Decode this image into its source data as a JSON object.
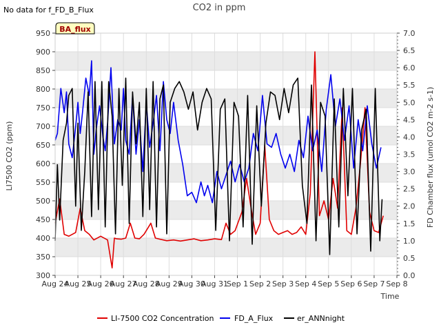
{
  "chart_data": {
    "type": "line",
    "title": "CO2 in ppm",
    "corner_note": "No data for f_FD_B_Flux",
    "badge": "BA_flux",
    "xlabel": "Time",
    "ylabel": "LI7500 CO2 (ppm)",
    "y2label": "FD Chamber flux (umol CO2 m-2 s-1)",
    "xlim": [
      0,
      15
    ],
    "ylim": [
      300,
      950
    ],
    "y2lim": [
      0.0,
      7.0
    ],
    "x_ticks": [
      {
        "pos": 0,
        "label": "Aug 24"
      },
      {
        "pos": 1,
        "label": "Aug 25"
      },
      {
        "pos": 2,
        "label": "Aug 26"
      },
      {
        "pos": 3,
        "label": "Aug 27"
      },
      {
        "pos": 4,
        "label": "Aug 28"
      },
      {
        "pos": 5,
        "label": "Aug 29"
      },
      {
        "pos": 6,
        "label": "Aug 30"
      },
      {
        "pos": 7,
        "label": "Aug 31"
      },
      {
        "pos": 8,
        "label": "Sep 1"
      },
      {
        "pos": 9,
        "label": "Sep 2"
      },
      {
        "pos": 10,
        "label": "Sep 3"
      },
      {
        "pos": 11,
        "label": "Sep 4"
      },
      {
        "pos": 12,
        "label": "Sep 5"
      },
      {
        "pos": 13,
        "label": "Sep 6"
      },
      {
        "pos": 14,
        "label": "Sep 7"
      },
      {
        "pos": 15,
        "label": "Sep 8"
      }
    ],
    "y_ticks": [
      {
        "value": 300,
        "label": "300"
      },
      {
        "value": 350,
        "label": "350"
      },
      {
        "value": 400,
        "label": "400"
      },
      {
        "value": 450,
        "label": "450"
      },
      {
        "value": 500,
        "label": "500"
      },
      {
        "value": 550,
        "label": "550"
      },
      {
        "value": 600,
        "label": "600"
      },
      {
        "value": 650,
        "label": "650"
      },
      {
        "value": 700,
        "label": "700"
      },
      {
        "value": 750,
        "label": "750"
      },
      {
        "value": 800,
        "label": "800"
      },
      {
        "value": 850,
        "label": "850"
      },
      {
        "value": 900,
        "label": "900"
      },
      {
        "value": 950,
        "label": "950"
      }
    ],
    "y2_ticks": [
      {
        "value": 0.0,
        "label": "0.0"
      },
      {
        "value": 0.5,
        "label": "0.5"
      },
      {
        "value": 1.0,
        "label": "1.0"
      },
      {
        "value": 1.5,
        "label": "1.5"
      },
      {
        "value": 2.0,
        "label": "2.0"
      },
      {
        "value": 2.5,
        "label": "2.5"
      },
      {
        "value": 3.0,
        "label": "3.0"
      },
      {
        "value": 3.5,
        "label": "3.5"
      },
      {
        "value": 4.0,
        "label": "4.0"
      },
      {
        "value": 4.5,
        "label": "4.5"
      },
      {
        "value": 5.0,
        "label": "5.0"
      },
      {
        "value": 5.5,
        "label": "5.5"
      },
      {
        "value": 6.0,
        "label": "6.0"
      },
      {
        "value": 6.5,
        "label": "6.5"
      },
      {
        "value": 7.0,
        "label": "7.0"
      }
    ],
    "grid": true,
    "legend_position": "bottom-center",
    "series": [
      {
        "name": "LI-7500 CO2 Concentration",
        "axis": "left",
        "color": "#e00000",
        "x": [
          0.0,
          0.2,
          0.4,
          0.6,
          0.9,
          1.1,
          1.3,
          1.5,
          1.7,
          2.0,
          2.3,
          2.5,
          2.6,
          2.7,
          2.9,
          3.1,
          3.3,
          3.5,
          3.7,
          3.9,
          4.2,
          4.4,
          4.6,
          4.9,
          5.2,
          5.5,
          5.8,
          6.1,
          6.4,
          6.7,
          7.0,
          7.3,
          7.5,
          7.7,
          7.9,
          8.2,
          8.4,
          8.6,
          8.8,
          9.0,
          9.2,
          9.4,
          9.6,
          9.8,
          10.0,
          10.2,
          10.4,
          10.6,
          10.8,
          11.0,
          11.2,
          11.4,
          11.6,
          11.8,
          12.0,
          12.2,
          12.4,
          12.6,
          12.8,
          13.0,
          13.2,
          13.4,
          13.6,
          13.8,
          14.0,
          14.2,
          14.4
        ],
        "values": [
          440,
          505,
          410,
          405,
          415,
          480,
          420,
          410,
          395,
          405,
          395,
          320,
          400,
          398,
          397,
          400,
          440,
          400,
          398,
          410,
          440,
          400,
          397,
          393,
          395,
          392,
          395,
          398,
          393,
          395,
          398,
          396,
          440,
          410,
          420,
          470,
          560,
          480,
          410,
          440,
          650,
          450,
          420,
          410,
          415,
          420,
          410,
          415,
          430,
          410,
          520,
          900,
          460,
          500,
          450,
          560,
          480,
          750,
          420,
          410,
          480,
          600,
          750,
          470,
          420,
          415,
          460
        ]
      },
      {
        "name": "FD_A_Flux",
        "axis": "right",
        "color": "#0000ee",
        "x": [
          0.0,
          0.1,
          0.25,
          0.4,
          0.5,
          0.6,
          0.75,
          0.9,
          1.0,
          1.1,
          1.2,
          1.35,
          1.5,
          1.6,
          1.7,
          1.8,
          1.95,
          2.1,
          2.2,
          2.3,
          2.45,
          2.6,
          2.75,
          2.9,
          3.0,
          3.1,
          3.25,
          3.4,
          3.55,
          3.7,
          3.85,
          4.0,
          4.15,
          4.3,
          4.45,
          4.6,
          4.75,
          4.9,
          5.05,
          5.2,
          5.4,
          5.6,
          5.8,
          6.0,
          6.2,
          6.4,
          6.55,
          6.7,
          6.9,
          7.1,
          7.3,
          7.5,
          7.7,
          7.9,
          8.1,
          8.3,
          8.5,
          8.7,
          8.9,
          9.1,
          9.3,
          9.5,
          9.7,
          9.9,
          10.1,
          10.3,
          10.5,
          10.7,
          10.9,
          11.1,
          11.3,
          11.5,
          11.7,
          11.9,
          12.1,
          12.3,
          12.5,
          12.7,
          12.9,
          13.1,
          13.3,
          13.5,
          13.7,
          13.9,
          14.1,
          14.3
        ],
        "values": [
          3.9,
          4.1,
          5.4,
          4.7,
          5.3,
          3.8,
          3.4,
          4.3,
          5.0,
          4.1,
          4.7,
          5.7,
          5.2,
          6.2,
          3.5,
          4.2,
          4.9,
          4.0,
          3.6,
          4.4,
          6.0,
          3.8,
          4.5,
          4.2,
          5.4,
          3.9,
          3.5,
          5.2,
          3.5,
          4.5,
          3.0,
          5.0,
          3.7,
          4.4,
          5.2,
          3.6,
          5.6,
          4.5,
          4.1,
          5.0,
          3.9,
          3.2,
          2.3,
          2.4,
          2.1,
          2.7,
          2.3,
          2.6,
          2.1,
          3.0,
          2.5,
          2.9,
          3.3,
          2.7,
          3.2,
          2.7,
          3.1,
          4.1,
          3.6,
          5.2,
          3.8,
          3.7,
          4.1,
          3.5,
          3.1,
          3.5,
          3.0,
          3.9,
          3.4,
          4.6,
          3.6,
          4.2,
          3.0,
          4.8,
          5.8,
          4.3,
          5.1,
          3.9,
          4.9,
          3.1,
          4.5,
          3.6,
          4.9,
          3.8,
          3.1,
          3.7
        ]
      },
      {
        "name": "er_ANNnight",
        "axis": "right",
        "color": "#000000",
        "x": [
          0.0,
          0.1,
          0.2,
          0.35,
          0.5,
          0.6,
          0.75,
          0.9,
          1.0,
          1.15,
          1.3,
          1.45,
          1.6,
          1.75,
          1.9,
          2.05,
          2.2,
          2.35,
          2.5,
          2.65,
          2.8,
          2.95,
          3.1,
          3.25,
          3.4,
          3.55,
          3.7,
          3.85,
          4.0,
          4.15,
          4.3,
          4.45,
          4.6,
          4.75,
          4.9,
          5.05,
          5.25,
          5.45,
          5.65,
          5.85,
          6.05,
          6.25,
          6.45,
          6.65,
          6.85,
          7.05,
          7.25,
          7.45,
          7.65,
          7.85,
          8.05,
          8.25,
          8.45,
          8.65,
          8.85,
          9.05,
          9.25,
          9.45,
          9.65,
          9.85,
          10.05,
          10.25,
          10.45,
          10.65,
          10.85,
          11.05,
          11.25,
          11.45,
          11.65,
          11.85,
          12.05,
          12.25,
          12.45,
          12.65,
          12.85,
          13.05,
          13.25,
          13.45,
          13.65,
          13.85,
          14.05,
          14.25,
          14.35
        ],
        "values": [
          1.0,
          3.2,
          1.6,
          3.9,
          4.4,
          5.2,
          5.4,
          2.0,
          4.4,
          1.3,
          3.0,
          5.3,
          1.7,
          5.6,
          1.9,
          5.6,
          1.4,
          5.6,
          4.6,
          1.2,
          5.4,
          2.6,
          5.7,
          1.5,
          5.3,
          3.8,
          5.0,
          1.7,
          5.4,
          1.9,
          5.6,
          1.4,
          5.1,
          5.5,
          1.2,
          5.0,
          5.4,
          5.6,
          5.3,
          4.8,
          5.3,
          4.2,
          5.0,
          5.4,
          5.1,
          1.3,
          4.8,
          5.1,
          1.0,
          5.0,
          4.6,
          1.4,
          5.2,
          0.9,
          4.9,
          2.0,
          4.4,
          5.3,
          5.2,
          4.5,
          5.4,
          4.7,
          5.5,
          5.7,
          2.6,
          1.5,
          5.5,
          1.0,
          5.0,
          4.6,
          0.6,
          5.1,
          1.4,
          5.4,
          2.3,
          5.4,
          1.2,
          4.2,
          4.8,
          0.7,
          5.4,
          1.0,
          2.2
        ]
      }
    ]
  }
}
